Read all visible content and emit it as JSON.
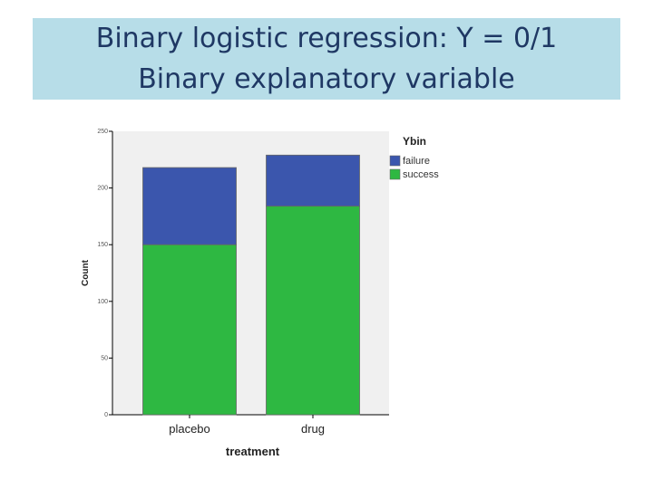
{
  "slide": {
    "title_line1": "Binary logistic regression: Y = 0/1",
    "title_line2": "Binary explanatory variable"
  },
  "chart_data": {
    "type": "bar",
    "stacked": true,
    "categories": [
      "placebo",
      "drug"
    ],
    "series": [
      {
        "name": "success",
        "values": [
          150,
          184
        ],
        "color": "#2eb842"
      },
      {
        "name": "failure",
        "values": [
          68,
          45
        ],
        "color": "#3b56ad"
      }
    ],
    "xlabel": "treatment",
    "ylabel": "Count",
    "ylim": [
      0,
      250
    ],
    "yticks": [
      0,
      50,
      100,
      150,
      200,
      250
    ],
    "legend_title": "Ybin",
    "legend_order": [
      "failure",
      "success"
    ],
    "legend_position": "top-right",
    "plot_background": "#f0f0f0",
    "grid": false
  }
}
